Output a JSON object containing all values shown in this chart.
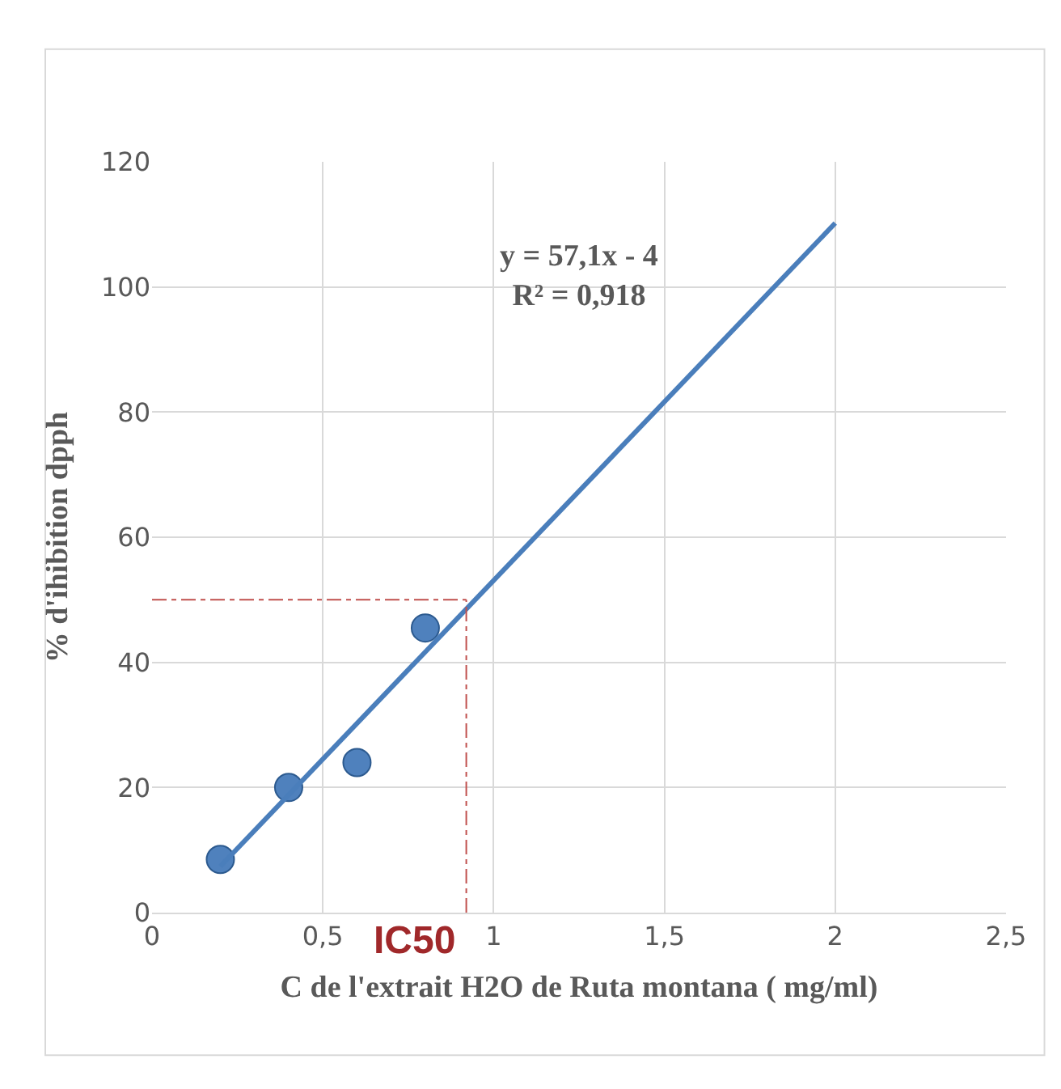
{
  "chart_data": {
    "type": "scatter",
    "xlabel": "C de l'extrait H2O de Ruta montana ( mg/ml)",
    "ylabel": "% d'ihibition dpph",
    "x": [
      0.2,
      0.4,
      0.6,
      0.8
    ],
    "series": [
      {
        "color": "#4f81bd",
        "values": [
          8.5,
          20,
          24,
          45.5
        ],
        "marker": "circle"
      },
      {
        "type": "line",
        "color": "#4a7ebb",
        "x": [
          0.2,
          2
        ],
        "values": [
          7.4,
          110.2
        ],
        "marker": "none",
        "line_style": "solid"
      }
    ],
    "annotations": [
      "y = 57,1x - 4\nR² = 0,918"
    ],
    "ref_lines": [
      {
        "axis": "x",
        "value": 0.92,
        "label": "IC50",
        "color": "#c0504d",
        "line_style": "dashdot"
      },
      {
        "axis": "y",
        "value": 50,
        "color": "#c0504d",
        "line_style": "dashdot"
      }
    ],
    "xlim": [
      0,
      2.5
    ],
    "xticks": [
      0,
      {
        "value": 0.5,
        "label": "0,5"
      },
      1,
      {
        "value": 1.5,
        "label": "1,5"
      },
      2,
      {
        "value": 2.5,
        "label": "2,5"
      }
    ],
    "ylim": [
      0,
      120
    ],
    "yticks": [
      0,
      20,
      40,
      60,
      80,
      100,
      120
    ],
    "grid": true,
    "legend": false
  }
}
